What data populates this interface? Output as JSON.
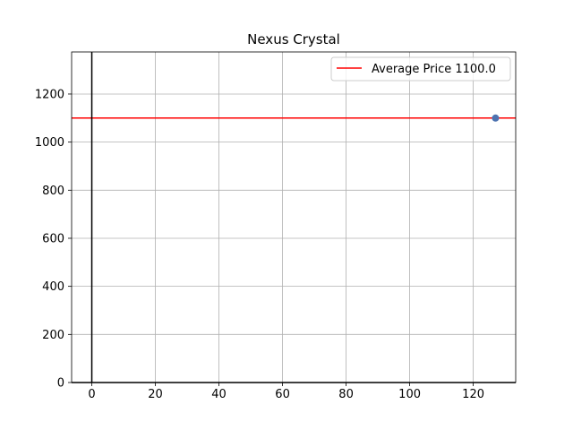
{
  "chart_data": {
    "type": "scatter",
    "title": "Nexus Crystal",
    "xlabel": "",
    "ylabel": "",
    "xlim": [
      -6.35,
      133.35
    ],
    "ylim": [
      0,
      1375
    ],
    "x_ticks": [
      0,
      20,
      40,
      60,
      80,
      100,
      120
    ],
    "y_ticks": [
      0,
      200,
      400,
      600,
      800,
      1000,
      1200
    ],
    "grid": true,
    "series": [
      {
        "x": [
          127
        ],
        "y": [
          1100
        ],
        "color": "#4c72b0"
      }
    ],
    "reference_lines": [
      {
        "orientation": "horizontal",
        "value": 1100.0,
        "color": "#ff0000",
        "label": "Average Price 1100.0"
      },
      {
        "orientation": "vertical",
        "value": 0,
        "color": "#000000"
      },
      {
        "orientation": "horizontal",
        "value": 0,
        "color": "#000000"
      }
    ],
    "legend": {
      "position": "top-right",
      "entries": [
        "Average Price 1100.0"
      ]
    }
  }
}
